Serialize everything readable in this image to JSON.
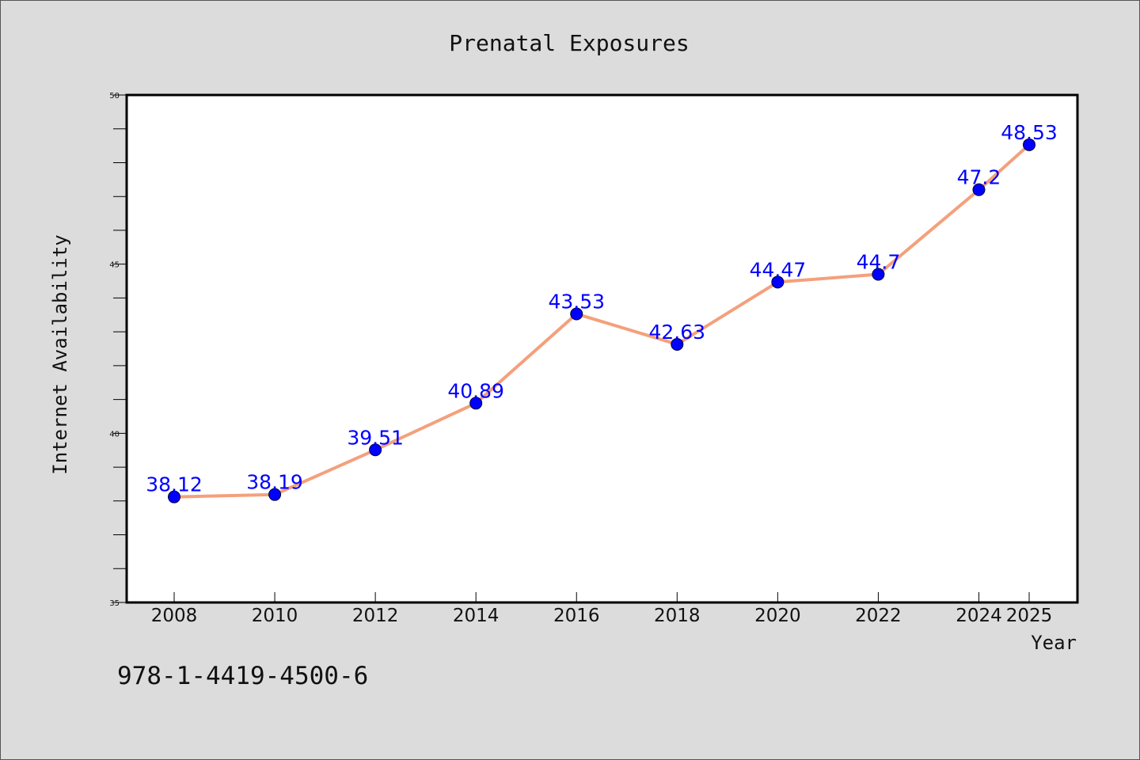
{
  "chart_data": {
    "type": "line",
    "title": "Prenatal Exposures",
    "xlabel": "Year",
    "ylabel": "Internet Availability",
    "x": [
      "2008",
      "2010",
      "2012",
      "2014",
      "2016",
      "2018",
      "2020",
      "2022",
      "2024",
      "2025"
    ],
    "series": [
      {
        "values": [
          38.12,
          38.19,
          39.51,
          40.89,
          43.53,
          42.63,
          44.47,
          44.7,
          47.2,
          48.53
        ],
        "labels": [
          "38.12",
          "38.19",
          "39.51",
          "40.89",
          "43.53",
          "42.63",
          "44.47",
          "44.7",
          "47.2",
          "48.53"
        ],
        "line_color": "#f4a07c",
        "marker_color": "#0000ff"
      }
    ],
    "ylim": [
      35,
      50
    ],
    "yticks": [
      "35",
      "40",
      "45",
      "50"
    ],
    "grid": false,
    "legend": "none"
  },
  "footnote": "978-1-4419-4500-6",
  "colors": {
    "background": "#dcdcdc",
    "plot_background": "#ffffff",
    "label_color": "#0000ff"
  }
}
